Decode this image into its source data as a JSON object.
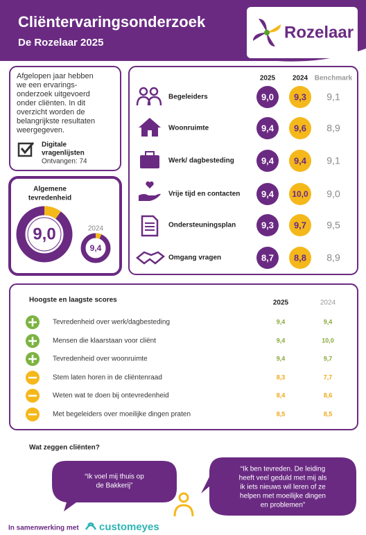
{
  "header": {
    "title": "Cliëntervaringsonderzoek",
    "subtitle": "De Rozelaar 2025",
    "logo": "Rozelaar"
  },
  "intro": {
    "lines": [
      "Afgelopen jaar hebben",
      "we  een ervarings-",
      "onderzoek uitgevoerd",
      "onder cliënten. In dit",
      "overzicht worden de",
      "belangrijkste resultaten",
      "weergegeven."
    ],
    "method": [
      "Digitale",
      "vragenlijsten"
    ],
    "received": "Ontvangen: 74"
  },
  "overall": {
    "title": [
      "Algemene",
      "tevredenheid"
    ],
    "value": "9,0",
    "previous_label": "2024",
    "previous_value": "9,4"
  },
  "scores": {
    "columns": [
      "2025",
      "2024",
      "Benchmark"
    ],
    "rows": [
      {
        "label": "Begeleiders",
        "2025": "9,0",
        "2024": "9,3",
        "benchmark": "9,1"
      },
      {
        "label": "Woonruimte",
        "2025": "9,4",
        "2024": "9,6",
        "benchmark": "8,9"
      },
      {
        "label": "Werk/ dagbesteding",
        "2025": "9,4",
        "2024": "9,4",
        "benchmark": "9,1"
      },
      {
        "label": "Vrije tijd en contacten",
        "2025": "9,4",
        "2024": "10,0",
        "benchmark": "9,0"
      },
      {
        "label": "Ondersteuningsplan",
        "2025": "9,3",
        "2024": "9,7",
        "benchmark": "9,5"
      },
      {
        "label": "Omgang vragen",
        "2025": "8,7",
        "2024": "8,8",
        "benchmark": "8,9"
      }
    ]
  },
  "highlow": {
    "title": "Hoogste en laagste scores",
    "columns": [
      "2025",
      "2024"
    ],
    "rows": [
      {
        "label": "Tevredenheid over werk/dagbesteding",
        "2025": "9,4",
        "2024": "9,4"
      },
      {
        "label": "Mensen die klaarstaan voor cliënt",
        "2025": "9,4",
        "2024": "10,0"
      },
      {
        "label": "Tevredenheid over woonruimte",
        "2025": "9,4",
        "2024": "9,7"
      },
      {
        "label": "Stem laten horen in de cliëntenraad",
        "2025": "8,3",
        "2024": "7,7"
      },
      {
        "label": "Weten wat te doen bij ontevredenheid",
        "2025": "8,4",
        "2024": "8,6"
      },
      {
        "label": "Met begeleiders over moeilijke dingen praten",
        "2025": "8,5",
        "2024": "8,5"
      }
    ]
  },
  "quotes": {
    "title": "Wat zeggen cliënten?",
    "items": [
      [
        "“Ik voel mij thuis op",
        "de Bakkerij”"
      ],
      [
        "“Ik ben tevreden. De leiding",
        "heeft veel geduld met mij als",
        "ik iets nieuws wil leren of ze",
        "helpen met moeilijke dingen",
        "en problemen”"
      ]
    ]
  },
  "footer": {
    "text": "In samenwerking met",
    "brand": "customeyes"
  }
}
